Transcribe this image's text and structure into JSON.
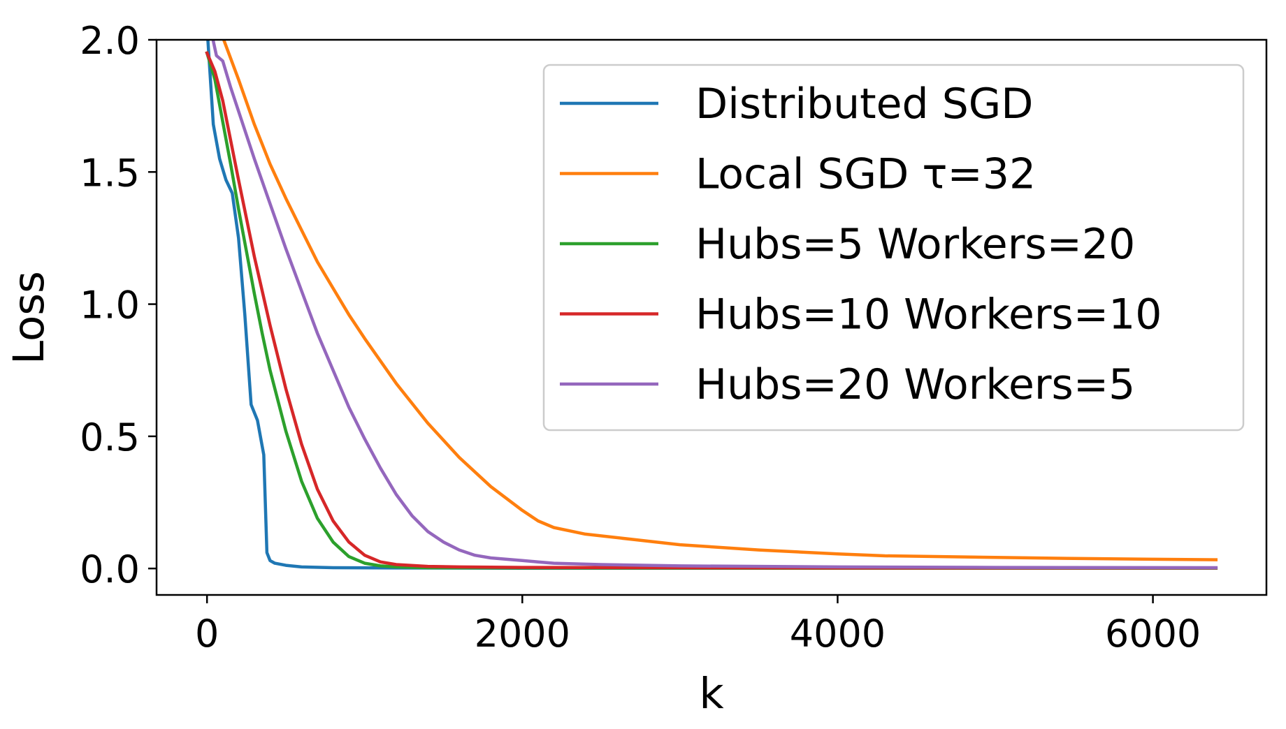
{
  "chart_data": {
    "type": "line",
    "title": "",
    "xlabel": "k",
    "ylabel": "Loss",
    "xlim": [
      -320,
      6720
    ],
    "ylim": [
      -0.1,
      2.0
    ],
    "xticks": [
      0,
      2000,
      4000,
      6000
    ],
    "xtick_labels": [
      "0",
      "2000",
      "4000",
      "6000"
    ],
    "yticks": [
      0.0,
      0.5,
      1.0,
      1.5,
      2.0
    ],
    "ytick_labels": [
      "0.0",
      "0.5",
      "1.0",
      "1.5",
      "2.0"
    ],
    "grid": false,
    "legend_position": "top-right",
    "series": [
      {
        "name": "Distributed SGD",
        "color": "#1f77b4",
        "x": [
          0,
          40,
          80,
          120,
          160,
          200,
          240,
          280,
          320,
          360,
          380,
          400,
          430,
          500,
          600,
          800,
          1200,
          2000,
          4000,
          6400
        ],
        "y": [
          2.05,
          1.68,
          1.55,
          1.47,
          1.42,
          1.25,
          0.96,
          0.62,
          0.56,
          0.43,
          0.06,
          0.03,
          0.02,
          0.012,
          0.006,
          0.003,
          0.002,
          0.001,
          0.001,
          0.001
        ]
      },
      {
        "name": "Local SGD τ=32",
        "color": "#ff7f0e",
        "x": [
          100,
          200,
          300,
          400,
          500,
          600,
          700,
          800,
          900,
          1000,
          1200,
          1400,
          1600,
          1800,
          2000,
          2100,
          2200,
          2400,
          2700,
          3000,
          3500,
          4000,
          4300,
          5000,
          5500,
          6000,
          6400
        ],
        "y": [
          2.01,
          1.85,
          1.68,
          1.53,
          1.4,
          1.28,
          1.16,
          1.06,
          0.96,
          0.87,
          0.7,
          0.55,
          0.42,
          0.31,
          0.22,
          0.18,
          0.155,
          0.13,
          0.11,
          0.09,
          0.07,
          0.055,
          0.048,
          0.042,
          0.038,
          0.035,
          0.033
        ]
      },
      {
        "name": "Hubs=5 Workers=20",
        "color": "#2ca02c",
        "x": [
          0,
          50,
          100,
          150,
          200,
          250,
          300,
          350,
          400,
          500,
          600,
          700,
          800,
          900,
          1000,
          1100,
          1200,
          1400,
          2000,
          4000,
          6400
        ],
        "y": [
          1.95,
          1.85,
          1.69,
          1.53,
          1.36,
          1.2,
          1.04,
          0.89,
          0.75,
          0.52,
          0.33,
          0.19,
          0.1,
          0.045,
          0.02,
          0.01,
          0.006,
          0.003,
          0.002,
          0.001,
          0.001
        ]
      },
      {
        "name": "Hubs=10 Workers=10",
        "color": "#d62728",
        "x": [
          0,
          50,
          100,
          150,
          200,
          300,
          400,
          500,
          600,
          700,
          800,
          900,
          1000,
          1100,
          1200,
          1400,
          1600,
          2000,
          3000,
          4000,
          6400
        ],
        "y": [
          1.95,
          1.88,
          1.77,
          1.62,
          1.47,
          1.18,
          0.92,
          0.68,
          0.47,
          0.3,
          0.18,
          0.1,
          0.05,
          0.025,
          0.015,
          0.008,
          0.006,
          0.004,
          0.003,
          0.002,
          0.002
        ]
      },
      {
        "name": "Hubs=20 Workers=5",
        "color": "#9467bd",
        "x": [
          20,
          60,
          100,
          150,
          200,
          300,
          400,
          500,
          600,
          700,
          800,
          900,
          1000,
          1100,
          1200,
          1300,
          1400,
          1500,
          1600,
          1700,
          1800,
          1900,
          2000,
          2100,
          2200,
          2500,
          3000,
          4000,
          5000,
          6400
        ],
        "y": [
          2.05,
          1.94,
          1.92,
          1.82,
          1.73,
          1.55,
          1.38,
          1.21,
          1.05,
          0.89,
          0.75,
          0.61,
          0.49,
          0.38,
          0.28,
          0.2,
          0.14,
          0.1,
          0.07,
          0.05,
          0.04,
          0.035,
          0.03,
          0.025,
          0.02,
          0.015,
          0.01,
          0.006,
          0.004,
          0.003
        ]
      }
    ]
  }
}
